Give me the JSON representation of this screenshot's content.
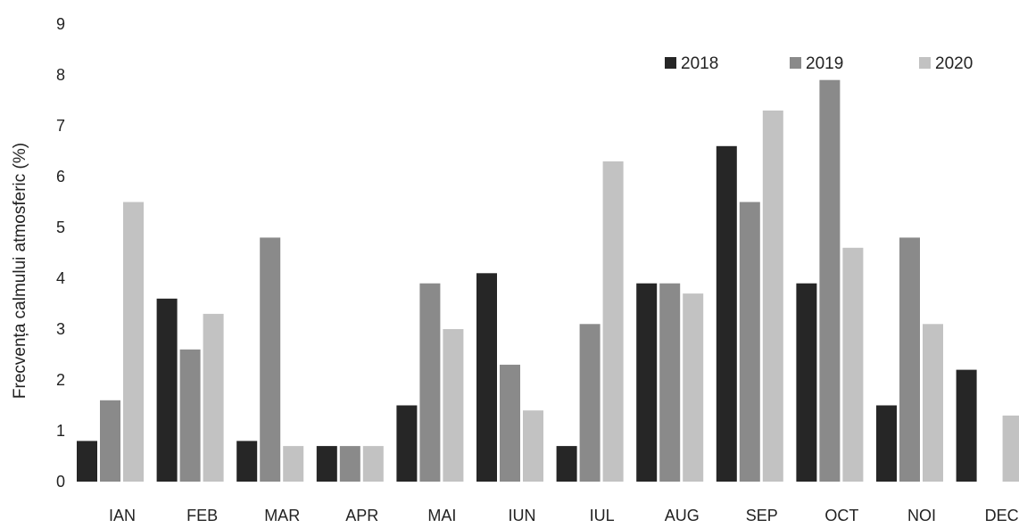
{
  "chart_data": {
    "type": "bar",
    "title": "",
    "xlabel": "",
    "ylabel": "Frecvența calmului atmosferic (%)",
    "ylim": [
      0,
      9
    ],
    "yticks": [
      0,
      1,
      2,
      3,
      4,
      5,
      6,
      7,
      8,
      9
    ],
    "grid": false,
    "legend_position": "top-right",
    "categories": [
      "IAN",
      "FEB",
      "MAR",
      "APR",
      "MAI",
      "IUN",
      "IUL",
      "AUG",
      "SEP",
      "OCT",
      "NOI",
      "DEC"
    ],
    "series": [
      {
        "name": "2018",
        "color": "#262626",
        "values": [
          0.8,
          3.6,
          0.8,
          0.7,
          1.5,
          4.1,
          0.7,
          3.9,
          6.6,
          3.9,
          1.5,
          2.2
        ]
      },
      {
        "name": "2019",
        "color": "#8a8a8a",
        "values": [
          1.6,
          2.6,
          4.8,
          0.7,
          3.9,
          2.3,
          3.1,
          3.9,
          5.5,
          7.9,
          4.8,
          0.0
        ]
      },
      {
        "name": "2020",
        "color": "#c2c2c2",
        "values": [
          5.5,
          3.3,
          0.7,
          0.7,
          3.0,
          1.4,
          6.3,
          3.7,
          7.3,
          4.6,
          3.1,
          1.3
        ]
      }
    ]
  }
}
